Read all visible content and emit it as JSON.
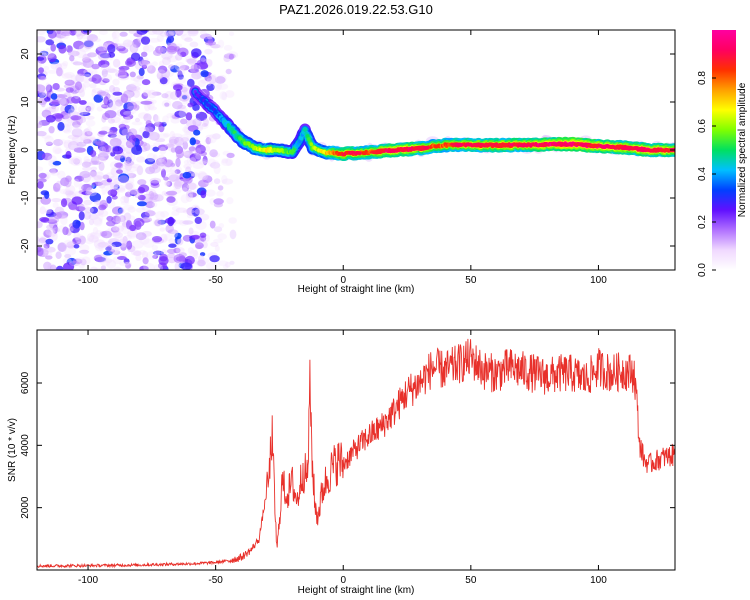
{
  "title": "PAZ1.2026.019.22.53.G10",
  "chart_data": [
    {
      "type": "heatmap",
      "xlabel": "Height of straight line (km)",
      "ylabel": "Frequency (Hz)",
      "xlim": [
        -120,
        130
      ],
      "ylim": [
        -25,
        25
      ],
      "xticks": [
        -100,
        -50,
        0,
        50,
        100
      ],
      "yticks": [
        -20,
        -10,
        0,
        10,
        20
      ],
      "colorbar": {
        "label": "Normalized spectral amplitude",
        "range": [
          0,
          1
        ],
        "ticks": [
          0.0,
          0.2,
          0.4,
          0.6,
          0.8
        ],
        "tick_labels": [
          "0.0",
          "0.2",
          "0.4",
          "0.6",
          "0.8"
        ],
        "colors": [
          "#ffffff",
          "#f0d8ff",
          "#b070ff",
          "#6010ff",
          "#0040ff",
          "#00c0ff",
          "#00e060",
          "#80ff00",
          "#ffff00",
          "#ffa000",
          "#ff3000",
          "#ff0060",
          "#ff00a0"
        ]
      },
      "noise_region_x": [
        -120,
        -43
      ],
      "ridge": {
        "x": [
          -58,
          -50,
          -45,
          -40,
          -35,
          -30,
          -25,
          -20,
          -17,
          -15,
          -12,
          -8,
          -5,
          0,
          10,
          20,
          30,
          35,
          40,
          50,
          60,
          70,
          80,
          90,
          100,
          110,
          120,
          130
        ],
        "freq_hz": [
          12,
          8,
          5,
          2,
          0.5,
          0,
          0,
          -0.5,
          2,
          4,
          0.5,
          -0.5,
          -0.5,
          -0.8,
          -0.5,
          0,
          0.3,
          0.8,
          1,
          1,
          1,
          1,
          1.2,
          1.2,
          0.8,
          0.5,
          0,
          0
        ],
        "amplitude": [
          0.3,
          0.35,
          0.45,
          0.5,
          0.55,
          0.6,
          0.55,
          0.5,
          0.4,
          0.45,
          0.55,
          0.6,
          0.65,
          0.75,
          0.7,
          0.8,
          0.75,
          0.7,
          0.7,
          0.75,
          0.75,
          0.75,
          0.8,
          0.85,
          0.8,
          0.75,
          0.8,
          0.75
        ]
      }
    },
    {
      "type": "line",
      "xlabel": "Height of straight line (km)",
      "ylabel": "SNR (10 * v/v)",
      "xlim": [
        -120,
        130
      ],
      "ylim": [
        0,
        7700
      ],
      "xticks": [
        -100,
        -50,
        0,
        50,
        100
      ],
      "yticks": [
        2000,
        4000,
        6000
      ],
      "color": "#e8302a",
      "series": [
        {
          "name": "SNR",
          "x": [
            -120,
            -100,
            -80,
            -60,
            -50,
            -45,
            -40,
            -36,
            -33,
            -31,
            -29,
            -28,
            -27,
            -26,
            -25,
            -24,
            -22,
            -20,
            -18,
            -16,
            -14,
            -13,
            -12,
            -11,
            -10,
            -8,
            -6,
            -4,
            -2,
            0,
            5,
            10,
            15,
            20,
            25,
            30,
            35,
            40,
            45,
            50,
            55,
            60,
            65,
            70,
            75,
            80,
            85,
            90,
            95,
            100,
            105,
            110,
            114,
            115,
            116,
            118,
            120,
            125,
            130
          ],
          "y": [
            130,
            140,
            160,
            200,
            240,
            300,
            400,
            650,
            1000,
            2000,
            3000,
            4400,
            2500,
            600,
            1600,
            2800,
            2400,
            2800,
            2200,
            3200,
            3000,
            5800,
            3200,
            2000,
            1700,
            2600,
            3000,
            3300,
            3500,
            3400,
            3900,
            4300,
            4600,
            5100,
            5700,
            6000,
            6500,
            6400,
            6600,
            6800,
            6400,
            6300,
            6500,
            6400,
            6300,
            6200,
            6300,
            6300,
            6100,
            6500,
            6300,
            6400,
            6300,
            5500,
            4100,
            3500,
            3400,
            3600,
            3700
          ]
        }
      ]
    }
  ]
}
